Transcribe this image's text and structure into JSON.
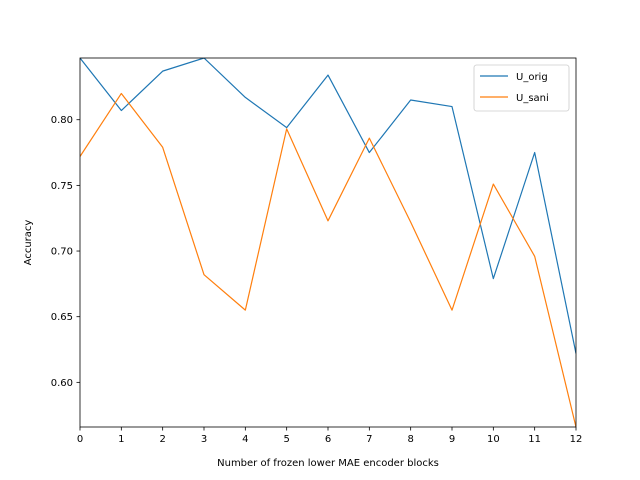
{
  "chart_data": {
    "type": "line",
    "title": "",
    "xlabel": "Number of frozen lower MAE encoder blocks",
    "ylabel": "Accuracy",
    "x": [
      0,
      1,
      2,
      3,
      4,
      5,
      6,
      7,
      8,
      9,
      10,
      11,
      12
    ],
    "xlim": [
      0,
      12
    ],
    "ylim": [
      0.566,
      0.847
    ],
    "xticks": [
      0,
      1,
      2,
      3,
      4,
      5,
      6,
      7,
      8,
      9,
      10,
      11,
      12
    ],
    "xtick_labels": [
      "0",
      "1",
      "2",
      "3",
      "4",
      "5",
      "6",
      "7",
      "8",
      "9",
      "10",
      "11",
      "12"
    ],
    "yticks": [
      0.6,
      0.65,
      0.7,
      0.75,
      0.8
    ],
    "ytick_labels": [
      "0.60",
      "0.65",
      "0.70",
      "0.75",
      "0.80"
    ],
    "grid": false,
    "legend_position": "top-right",
    "series": [
      {
        "name": "U_orig",
        "color": "#1f77b4",
        "values": [
          0.847,
          0.807,
          0.837,
          0.847,
          0.817,
          0.794,
          0.834,
          0.775,
          0.815,
          0.81,
          0.679,
          0.775,
          0.622
        ]
      },
      {
        "name": "U_sani",
        "color": "#ff7f0e",
        "values": [
          0.772,
          0.82,
          0.779,
          0.682,
          0.655,
          0.793,
          0.723,
          0.786,
          0.722,
          0.655,
          0.751,
          0.696,
          0.566
        ]
      }
    ]
  }
}
